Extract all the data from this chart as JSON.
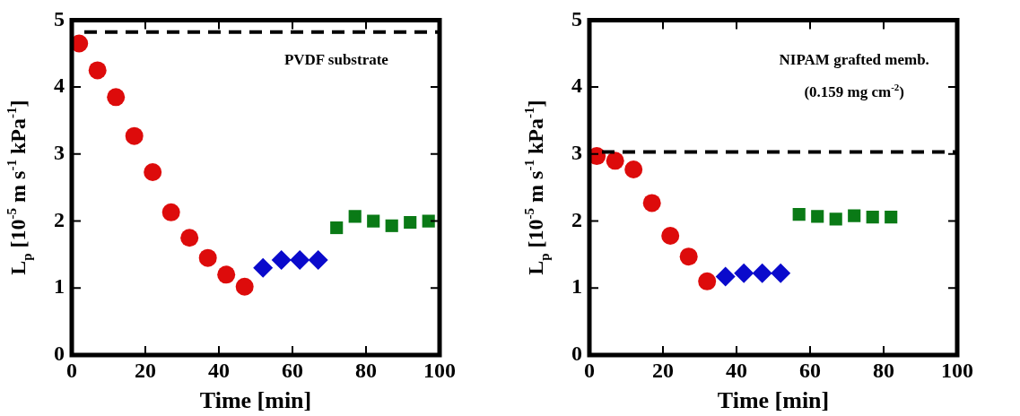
{
  "chart_data": [
    {
      "type": "scatter",
      "xlabel": "Time [min]",
      "ylabel": "L$_{p}$ [10$^{-5}$ m s$^{-1}$ kPa$^{-1}$]",
      "xlim": [
        0,
        100
      ],
      "xticks": [
        0,
        20,
        40,
        60,
        80,
        100
      ],
      "ylim": [
        0,
        5
      ],
      "yticks": [
        0,
        1,
        2,
        3,
        4,
        5
      ],
      "grid": false,
      "legend": false,
      "annotations": [
        "PVDF substrate"
      ],
      "ref_lines": [
        {
          "axis": "y",
          "value": 4.82,
          "color": "#000000",
          "line_style": "dashed"
        }
      ],
      "series": [
        {
          "type": "scatter",
          "marker": "circle",
          "color": "#dd0b0b",
          "x": [
            2,
            7,
            12,
            17,
            22,
            27,
            32,
            37,
            42,
            47
          ],
          "values": [
            4.65,
            4.25,
            3.85,
            3.27,
            2.73,
            2.13,
            1.75,
            1.45,
            1.2,
            1.02
          ]
        },
        {
          "type": "scatter",
          "marker": "diamond",
          "color": "#0a0acc",
          "x": [
            52,
            57,
            62,
            67
          ],
          "values": [
            1.3,
            1.42,
            1.42,
            1.42
          ]
        },
        {
          "type": "scatter",
          "marker": "square",
          "color": "#0a7a16",
          "x": [
            72,
            77,
            82,
            87,
            92,
            97
          ],
          "values": [
            1.9,
            2.07,
            2.0,
            1.93,
            1.98,
            2.0
          ]
        }
      ]
    },
    {
      "type": "scatter",
      "xlabel": "Time [min]",
      "ylabel": "L$_{p}$ [10$^{-5}$ m s$^{-1}$ kPa$^{-1}$]",
      "xlim": [
        0,
        100
      ],
      "xticks": [
        0,
        20,
        40,
        60,
        80,
        100
      ],
      "ylim": [
        0,
        5
      ],
      "yticks": [
        0,
        1,
        2,
        3,
        4,
        5
      ],
      "grid": false,
      "legend": false,
      "annotations": [
        "NIPAM grafted memb.",
        "(0.159 mg cm$^{-2}$)"
      ],
      "ref_lines": [
        {
          "axis": "y",
          "value": 3.03,
          "color": "#000000",
          "line_style": "dashed"
        }
      ],
      "series": [
        {
          "type": "scatter",
          "marker": "circle",
          "color": "#dd0b0b",
          "x": [
            2,
            7,
            12,
            17,
            22,
            27,
            32
          ],
          "values": [
            2.97,
            2.9,
            2.77,
            2.27,
            1.78,
            1.47,
            1.1
          ]
        },
        {
          "type": "scatter",
          "marker": "diamond",
          "color": "#0a0acc",
          "x": [
            37,
            42,
            47,
            52
          ],
          "values": [
            1.17,
            1.22,
            1.22,
            1.22
          ]
        },
        {
          "type": "scatter",
          "marker": "square",
          "color": "#0a7a16",
          "x": [
            57,
            62,
            67,
            72,
            77,
            82
          ],
          "values": [
            2.1,
            2.07,
            2.03,
            2.08,
            2.06,
            2.06
          ]
        }
      ]
    }
  ]
}
